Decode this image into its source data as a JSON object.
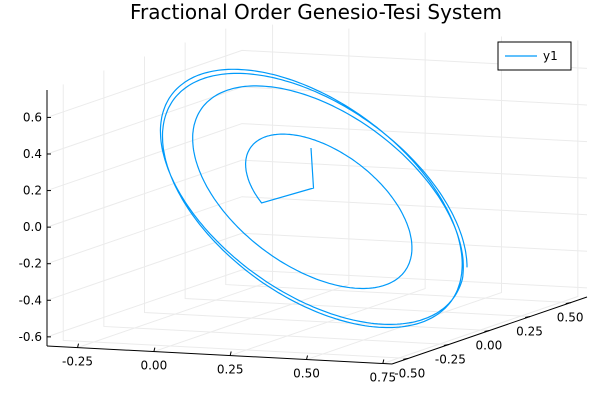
{
  "chart_data": {
    "type": "line3d",
    "title": "Fractional Order Genesio-Tesi System",
    "legend": {
      "entries": [
        "y1"
      ],
      "placement": "top-right"
    },
    "grid": true,
    "axes": {
      "x": {
        "ticks": [
          "-0.25",
          "0.00",
          "0.25",
          "0.50",
          "0.75"
        ],
        "tick_values": [
          -0.25,
          0.0,
          0.25,
          0.5,
          0.75
        ],
        "range": [
          -0.35,
          0.78
        ]
      },
      "y": {
        "ticks": [
          "-0.50",
          "-0.25",
          "0.00",
          "0.25",
          "0.50"
        ],
        "tick_values": [
          -0.5,
          -0.25,
          0.0,
          0.25,
          0.5
        ],
        "range": [
          -0.6,
          0.6
        ]
      },
      "z": {
        "ticks": [
          "-0.6",
          "-0.4",
          "-0.2",
          "0.0",
          "0.2",
          "0.4",
          "0.6"
        ],
        "tick_values": [
          -0.6,
          -0.4,
          -0.2,
          0.0,
          0.2,
          0.4,
          0.6
        ],
        "range": [
          -0.65,
          0.75
        ]
      }
    },
    "series": [
      {
        "name": "y1",
        "color": "#009AFA",
        "description": "trajectory starting near the center and spiralling outward onto a tilted limit cycle"
      }
    ]
  }
}
